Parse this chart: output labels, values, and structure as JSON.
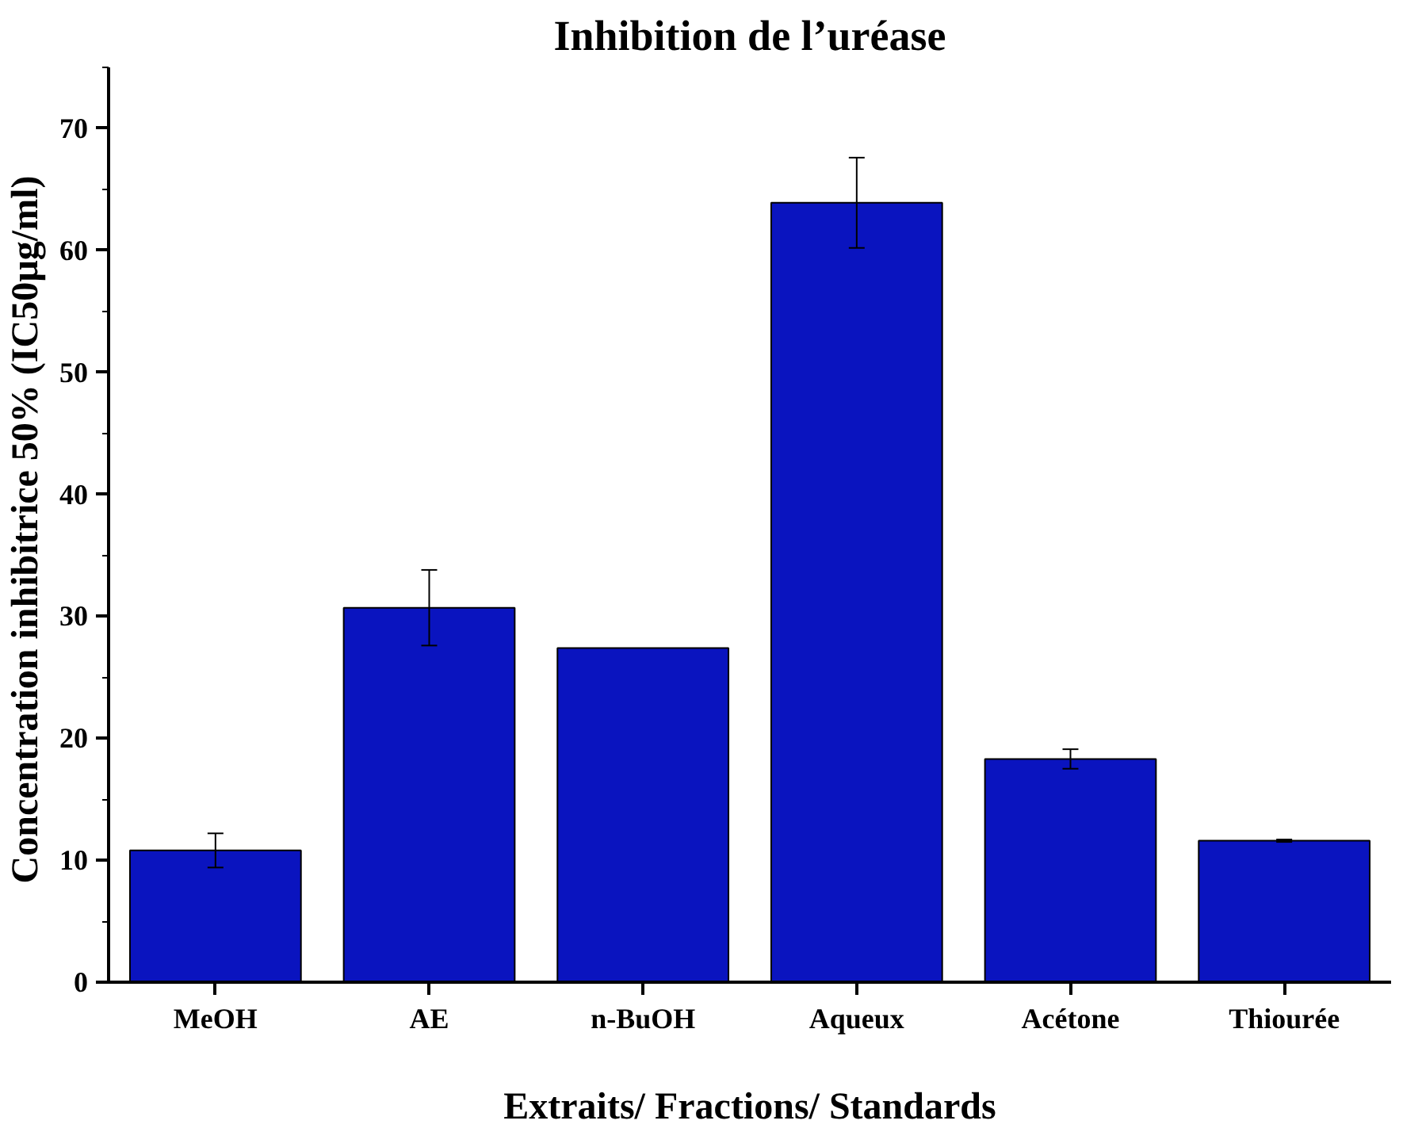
{
  "chart_data": {
    "type": "bar",
    "title": "Inhibition de l’uréase",
    "xlabel": "Extraits/ Fractions/ Standards",
    "ylabel": "Concentration inhibitrice 50%  (IC50µg/ml)",
    "categories": [
      "MeOH",
      "AE",
      "n-BuOH",
      "Aqueux",
      "Acétone",
      "Thiourée"
    ],
    "values": [
      10.8,
      30.7,
      27.4,
      63.9,
      18.3,
      11.6
    ],
    "errors": [
      1.4,
      3.1,
      null,
      3.7,
      0.8,
      0.1
    ],
    "color": "#0a14bf",
    "ylim": [
      0,
      75
    ],
    "yticks": [
      0,
      10,
      20,
      30,
      40,
      50,
      60,
      70
    ],
    "grid": false
  }
}
